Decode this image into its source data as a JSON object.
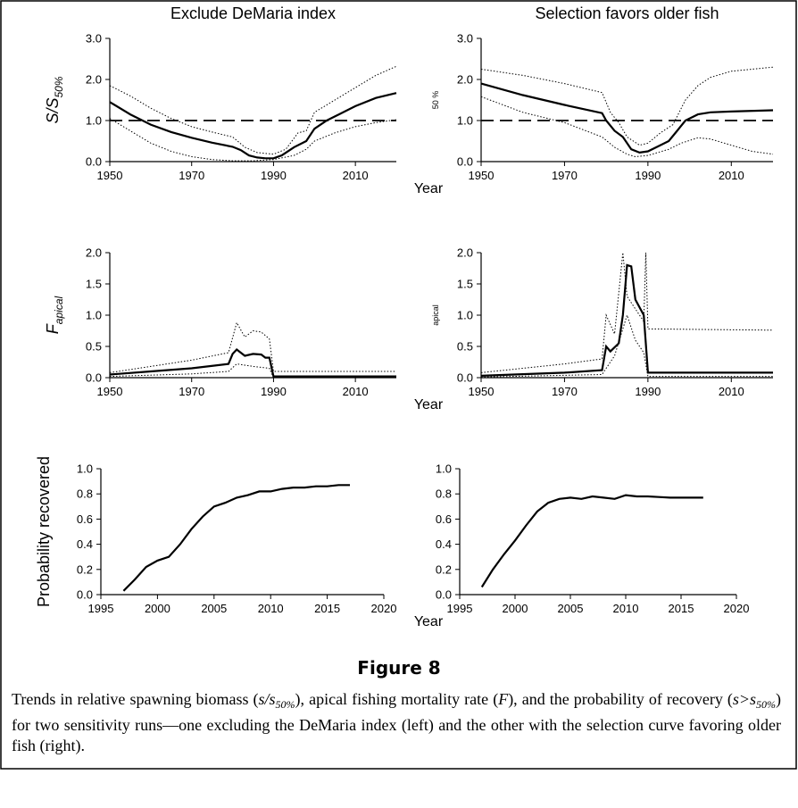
{
  "chart_data": [
    {
      "type": "line",
      "title": "Exclude DeMaria index",
      "ylabel": "S/S",
      "ylabel_sub": "50%",
      "xlim": [
        1950,
        2020
      ],
      "xticks": [
        1950,
        1970,
        1990,
        2010
      ],
      "ylim": [
        0,
        3
      ],
      "yticks": [
        {
          "value": 0,
          "label": "0.0"
        },
        {
          "value": 1,
          "label": "1.0"
        },
        {
          "value": 2,
          "label": "2.0"
        },
        {
          "value": 3,
          "label": "3.0"
        }
      ],
      "reference_line": 1,
      "series": [
        {
          "style": "solid",
          "color": "#000000",
          "x": [
            1950,
            1955,
            1960,
            1965,
            1970,
            1975,
            1980,
            1982,
            1984,
            1986,
            1988,
            1990,
            1992,
            1995,
            1998,
            2000,
            2003,
            2005,
            2010,
            2015,
            2020
          ],
          "values": [
            1.45,
            1.15,
            0.9,
            0.72,
            0.58,
            0.46,
            0.36,
            0.28,
            0.15,
            0.1,
            0.08,
            0.08,
            0.15,
            0.35,
            0.5,
            0.8,
            1.0,
            1.1,
            1.35,
            1.55,
            1.67
          ]
        },
        {
          "style": "dotted",
          "color": "#000000",
          "x": [
            1950,
            1955,
            1960,
            1965,
            1970,
            1975,
            1980,
            1983,
            1986,
            1990,
            1993,
            1996,
            1998,
            2000,
            2005,
            2010,
            2015,
            2020
          ],
          "values": [
            1.85,
            1.6,
            1.3,
            1.05,
            0.85,
            0.72,
            0.6,
            0.35,
            0.22,
            0.18,
            0.3,
            0.7,
            0.75,
            1.2,
            1.5,
            1.8,
            2.1,
            2.32
          ]
        },
        {
          "style": "dotted",
          "color": "#000000",
          "x": [
            1950,
            1955,
            1960,
            1965,
            1970,
            1975,
            1980,
            1985,
            1990,
            1995,
            1998,
            2000,
            2005,
            2010,
            2015,
            2020
          ],
          "values": [
            1.05,
            0.75,
            0.45,
            0.25,
            0.12,
            0.05,
            0.02,
            0.02,
            0.05,
            0.15,
            0.3,
            0.5,
            0.7,
            0.85,
            0.95,
            1.02
          ]
        }
      ]
    },
    {
      "type": "line",
      "title": "Selection favors older fish",
      "ylabel": "50 %",
      "xlabel": "Year",
      "xlim": [
        1950,
        2020
      ],
      "xticks": [
        1950,
        1970,
        1990,
        2010
      ],
      "ylim": [
        0,
        3
      ],
      "yticks": [
        {
          "value": 0,
          "label": "0.0"
        },
        {
          "value": 1,
          "label": "1.0"
        },
        {
          "value": 2,
          "label": "2.0"
        },
        {
          "value": 3,
          "label": "3.0"
        }
      ],
      "reference_line": 1,
      "series": [
        {
          "style": "solid",
          "color": "#000000",
          "x": [
            1950,
            1960,
            1970,
            1979,
            1980,
            1982,
            1984,
            1986,
            1988,
            1990,
            1993,
            1995,
            1997,
            1999,
            2002,
            2005,
            2010,
            2020
          ],
          "values": [
            1.9,
            1.62,
            1.38,
            1.18,
            1.0,
            0.75,
            0.6,
            0.3,
            0.22,
            0.25,
            0.4,
            0.5,
            0.75,
            1.0,
            1.15,
            1.2,
            1.22,
            1.25
          ]
        },
        {
          "style": "dotted",
          "color": "#000000",
          "x": [
            1950,
            1960,
            1970,
            1979,
            1981,
            1983,
            1985,
            1988,
            1990,
            1993,
            1996,
            1999,
            2002,
            2005,
            2010,
            2020
          ],
          "values": [
            2.25,
            2.1,
            1.9,
            1.68,
            1.2,
            0.95,
            0.6,
            0.4,
            0.45,
            0.7,
            0.9,
            1.5,
            1.85,
            2.05,
            2.2,
            2.3
          ]
        },
        {
          "style": "dotted",
          "color": "#000000",
          "x": [
            1950,
            1960,
            1970,
            1979,
            1982,
            1985,
            1987,
            1990,
            1995,
            1998,
            2002,
            2005,
            2010,
            2015,
            2020
          ],
          "values": [
            1.58,
            1.2,
            0.95,
            0.6,
            0.35,
            0.18,
            0.12,
            0.15,
            0.3,
            0.45,
            0.58,
            0.55,
            0.4,
            0.25,
            0.18
          ]
        }
      ]
    },
    {
      "type": "line",
      "ylabel": "F",
      "ylabel_sub": "apical",
      "xlim": [
        1950,
        2020
      ],
      "xticks": [
        1950,
        1970,
        1990,
        2010
      ],
      "ylim": [
        0,
        2
      ],
      "yticks": [
        {
          "value": 0,
          "label": "0.0"
        },
        {
          "value": 0.5,
          "label": "0.5"
        },
        {
          "value": 1,
          "label": "1.0"
        },
        {
          "value": 1.5,
          "label": "1.5"
        },
        {
          "value": 2,
          "label": "2.0"
        }
      ],
      "series": [
        {
          "style": "solid",
          "color": "#000000",
          "x": [
            1950,
            1960,
            1970,
            1979,
            1980,
            1981,
            1983,
            1985,
            1987,
            1988,
            1989,
            1990,
            2020
          ],
          "values": [
            0.05,
            0.1,
            0.15,
            0.22,
            0.38,
            0.45,
            0.35,
            0.38,
            0.37,
            0.32,
            0.32,
            0.02,
            0.02
          ]
        },
        {
          "style": "dotted",
          "color": "#000000",
          "x": [
            1950,
            1960,
            1970,
            1979,
            1981,
            1983,
            1985,
            1987,
            1989,
            1990,
            2020
          ],
          "values": [
            0.08,
            0.18,
            0.28,
            0.4,
            0.88,
            0.65,
            0.75,
            0.73,
            0.62,
            0.1,
            0.1
          ]
        },
        {
          "style": "dotted",
          "color": "#000000",
          "x": [
            1950,
            1970,
            1979,
            1981,
            1985,
            1989,
            1990,
            2020
          ],
          "values": [
            0.02,
            0.06,
            0.1,
            0.22,
            0.18,
            0.15,
            0.0,
            0.0
          ]
        }
      ]
    },
    {
      "type": "line",
      "ylabel": "apical",
      "xlabel": "Year",
      "xlim": [
        1950,
        2020
      ],
      "xticks": [
        1950,
        1970,
        1990,
        2010
      ],
      "ylim": [
        0,
        2
      ],
      "yticks": [
        {
          "value": 0,
          "label": "0.0"
        },
        {
          "value": 0.5,
          "label": "0.5"
        },
        {
          "value": 1,
          "label": "1.0"
        },
        {
          "value": 1.5,
          "label": "1.5"
        },
        {
          "value": 2,
          "label": "2.0"
        }
      ],
      "series": [
        {
          "style": "solid",
          "color": "#000000",
          "x": [
            1950,
            1970,
            1979,
            1980,
            1981,
            1983,
            1984,
            1985,
            1986,
            1987,
            1989,
            1990,
            2020
          ],
          "values": [
            0.03,
            0.08,
            0.12,
            0.5,
            0.42,
            0.55,
            1.0,
            1.8,
            1.78,
            1.25,
            1.0,
            0.08,
            0.08
          ]
        },
        {
          "style": "dotted",
          "color": "#000000",
          "x": [
            1950,
            1970,
            1979,
            1980,
            1982,
            1984,
            1985,
            1987,
            1989,
            1989.5,
            1990,
            2020
          ],
          "values": [
            0.08,
            0.22,
            0.3,
            1.0,
            0.7,
            2.0,
            1.3,
            1.1,
            0.9,
            2.0,
            0.78,
            0.76
          ]
        },
        {
          "style": "dotted",
          "color": "#000000",
          "x": [
            1950,
            1979,
            1980,
            1982,
            1985,
            1987,
            1989,
            1990,
            2020
          ],
          "values": [
            0.01,
            0.05,
            0.15,
            0.35,
            1.0,
            0.6,
            0.4,
            0.02,
            0.02
          ]
        }
      ]
    },
    {
      "type": "line",
      "ylabel": "Probability recovered",
      "xlim": [
        1995,
        2020
      ],
      "xticks": [
        1995,
        2000,
        2005,
        2010,
        2015,
        2020
      ],
      "ylim": [
        0,
        1
      ],
      "yticks": [
        {
          "value": 0,
          "label": "0.0"
        },
        {
          "value": 0.2,
          "label": "0.2"
        },
        {
          "value": 0.4,
          "label": "0.4"
        },
        {
          "value": 0.6,
          "label": "0.6"
        },
        {
          "value": 0.8,
          "label": "0.8"
        },
        {
          "value": 1,
          "label": "1.0"
        }
      ],
      "series": [
        {
          "style": "solid",
          "color": "#000000",
          "x": [
            1997,
            1998,
            1999,
            2000,
            2001,
            2002,
            2003,
            2004,
            2005,
            2006,
            2007,
            2008,
            2009,
            2010,
            2011,
            2012,
            2013,
            2014,
            2015,
            2016,
            2017
          ],
          "values": [
            0.03,
            0.12,
            0.22,
            0.27,
            0.3,
            0.4,
            0.52,
            0.62,
            0.7,
            0.73,
            0.77,
            0.79,
            0.82,
            0.82,
            0.84,
            0.85,
            0.85,
            0.86,
            0.86,
            0.87,
            0.87
          ]
        }
      ]
    },
    {
      "type": "line",
      "xlabel": "Year",
      "xlim": [
        1995,
        2020
      ],
      "xticks": [
        1995,
        2000,
        2005,
        2010,
        2015,
        2020
      ],
      "ylim": [
        0,
        1
      ],
      "yticks": [
        {
          "value": 0,
          "label": "0.0"
        },
        {
          "value": 0.2,
          "label": "0.2"
        },
        {
          "value": 0.4,
          "label": "0.4"
        },
        {
          "value": 0.6,
          "label": "0.6"
        },
        {
          "value": 0.8,
          "label": "0.8"
        },
        {
          "value": 1,
          "label": "1.0"
        }
      ],
      "series": [
        {
          "style": "solid",
          "color": "#000000",
          "x": [
            1997,
            1998,
            1999,
            2000,
            2001,
            2002,
            2003,
            2004,
            2005,
            2006,
            2007,
            2008,
            2009,
            2010,
            2011,
            2012,
            2013,
            2014,
            2015,
            2016,
            2017
          ],
          "values": [
            0.06,
            0.2,
            0.32,
            0.43,
            0.55,
            0.66,
            0.73,
            0.76,
            0.77,
            0.76,
            0.78,
            0.77,
            0.76,
            0.79,
            0.78,
            0.78,
            0.775,
            0.77,
            0.77,
            0.77,
            0.77
          ]
        }
      ]
    }
  ],
  "figure": {
    "title": "Figure 8",
    "caption": [
      {
        "text": "Trends in relative spawning biomass ("
      },
      {
        "text": "s/s",
        "style": "italic"
      },
      {
        "text": "50%",
        "style": "sub"
      },
      {
        "text": "), apical fishing mortality rate ("
      },
      {
        "text": "F",
        "style": "italic"
      },
      {
        "text": "), and the probability of recovery ("
      },
      {
        "text": "s>s",
        "style": "italic"
      },
      {
        "text": "50%",
        "style": "sub"
      },
      {
        "text": ") for two sensitivity runs—one excluding the DeMaria index (left) and the other with the selection curve favoring older fish (right)."
      }
    ]
  }
}
